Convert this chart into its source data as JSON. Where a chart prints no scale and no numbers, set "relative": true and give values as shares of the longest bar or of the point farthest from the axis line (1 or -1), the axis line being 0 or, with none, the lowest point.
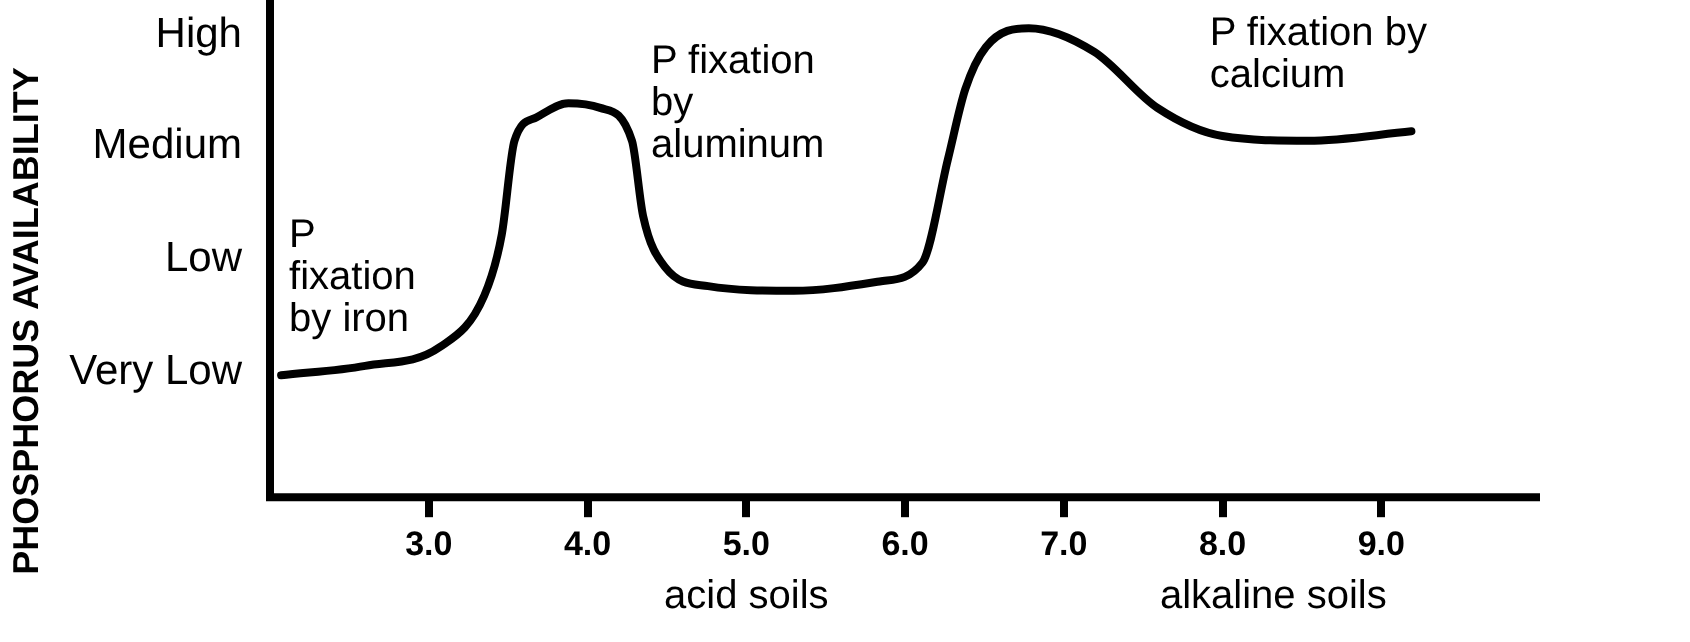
{
  "chart_data": {
    "type": "line",
    "color": "#000000",
    "relative": true,
    "x": [
      2.07,
      2.6,
      3.07,
      3.35,
      3.46,
      3.54,
      3.68,
      3.88,
      4.08,
      4.28,
      4.35,
      4.49,
      4.76,
      5.3,
      5.84,
      6.11,
      6.27,
      6.38,
      6.51,
      6.78,
      7.19,
      7.59,
      8.0,
      8.54,
      9.19
    ],
    "values": [
      0.26,
      0.28,
      0.32,
      0.43,
      0.56,
      0.76,
      0.81,
      0.84,
      0.83,
      0.76,
      0.6,
      0.49,
      0.45,
      0.44,
      0.46,
      0.5,
      0.72,
      0.87,
      0.96,
      1,
      0.95,
      0.83,
      0.77,
      0.76,
      0.78
    ],
    "xlim": [
      2.0,
      10.0
    ],
    "xticks": [
      {
        "value": 3,
        "label": "3.0"
      },
      {
        "value": 4,
        "label": "4.0"
      },
      {
        "value": 5,
        "label": "5.0"
      },
      {
        "value": 6,
        "label": "6.0"
      },
      {
        "value": 7,
        "label": "7.0"
      },
      {
        "value": 8,
        "label": "8.0"
      },
      {
        "value": 9,
        "label": "9.0"
      }
    ],
    "grid": false,
    "legend": false,
    "marker": "none",
    "line_style": "solid",
    "annotations": [
      "PHOSPHORUS AVAILABILITY",
      "Very Low",
      "Low",
      "Medium",
      "High",
      "P fixation by iron",
      "P fixation by aluminum",
      "P fixation by calcium",
      "acid soils",
      "alkaline soils"
    ]
  }
}
